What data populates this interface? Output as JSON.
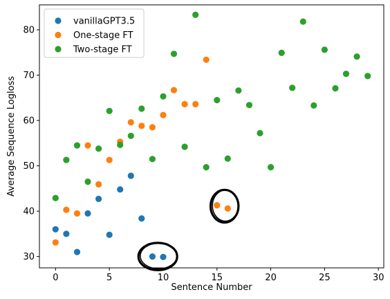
{
  "chart_data": {
    "type": "scatter",
    "xlabel": "Sentence Number",
    "ylabel": "Average Sequence Logloss",
    "xlim": [
      -1.5,
      30.5
    ],
    "ylim": [
      27.5,
      85.5
    ],
    "xticks": [
      0,
      5,
      10,
      15,
      20,
      25,
      30
    ],
    "yticks": [
      30,
      40,
      50,
      60,
      70,
      80
    ],
    "grid": false,
    "legend_position": "top-left",
    "series": [
      {
        "name": "vanillaGPT3.5",
        "color": "#1f77b4",
        "points": [
          [
            0,
            36.0
          ],
          [
            1,
            35.0
          ],
          [
            2,
            31.0
          ],
          [
            3,
            39.5
          ],
          [
            4,
            42.7
          ],
          [
            5,
            34.8
          ],
          [
            6,
            44.8
          ],
          [
            7,
            47.8
          ],
          [
            8,
            38.4
          ],
          [
            9,
            30.0
          ],
          [
            10,
            29.9
          ]
        ]
      },
      {
        "name": "One-stage FT",
        "color": "#ff7f0e",
        "points": [
          [
            0,
            33.1
          ],
          [
            1,
            40.3
          ],
          [
            2,
            39.5
          ],
          [
            3,
            54.5
          ],
          [
            4,
            45.9
          ],
          [
            5,
            51.3
          ],
          [
            6,
            55.3
          ],
          [
            7,
            59.6
          ],
          [
            8,
            58.8
          ],
          [
            9,
            58.5
          ],
          [
            10,
            61.2
          ],
          [
            11,
            66.7
          ],
          [
            12,
            63.6
          ],
          [
            13,
            63.6
          ],
          [
            14,
            73.4
          ],
          [
            15,
            41.3
          ],
          [
            16,
            40.6
          ]
        ]
      },
      {
        "name": "Two-stage FT",
        "color": "#2ca02c",
        "points": [
          [
            0,
            42.9
          ],
          [
            1,
            51.3
          ],
          [
            2,
            54.5
          ],
          [
            3,
            46.5
          ],
          [
            4,
            53.8
          ],
          [
            5,
            62.1
          ],
          [
            6,
            54.6
          ],
          [
            7,
            56.6
          ],
          [
            8,
            62.6
          ],
          [
            9,
            51.5
          ],
          [
            10,
            65.3
          ],
          [
            11,
            74.7
          ],
          [
            12,
            54.2
          ],
          [
            13,
            83.3
          ],
          [
            14,
            49.7
          ],
          [
            15,
            64.5
          ],
          [
            16,
            51.6
          ],
          [
            17,
            66.6
          ],
          [
            18,
            63.4
          ],
          [
            19,
            57.2
          ],
          [
            20,
            49.7
          ],
          [
            21,
            74.9
          ],
          [
            22,
            67.2
          ],
          [
            23,
            81.8
          ],
          [
            24,
            63.3
          ],
          [
            25,
            75.6
          ],
          [
            26,
            67.1
          ],
          [
            27,
            70.3
          ],
          [
            28,
            74.1
          ],
          [
            29,
            69.8
          ]
        ]
      }
    ],
    "annotations": [
      {
        "type": "hand-drawn-circle",
        "center": [
          9.5,
          30.0
        ],
        "radius_x": 1.8,
        "radius_y": 3.0
      },
      {
        "type": "hand-drawn-circle",
        "center": [
          15.7,
          41.1
        ],
        "radius_x": 1.3,
        "radius_y": 3.6
      }
    ]
  }
}
